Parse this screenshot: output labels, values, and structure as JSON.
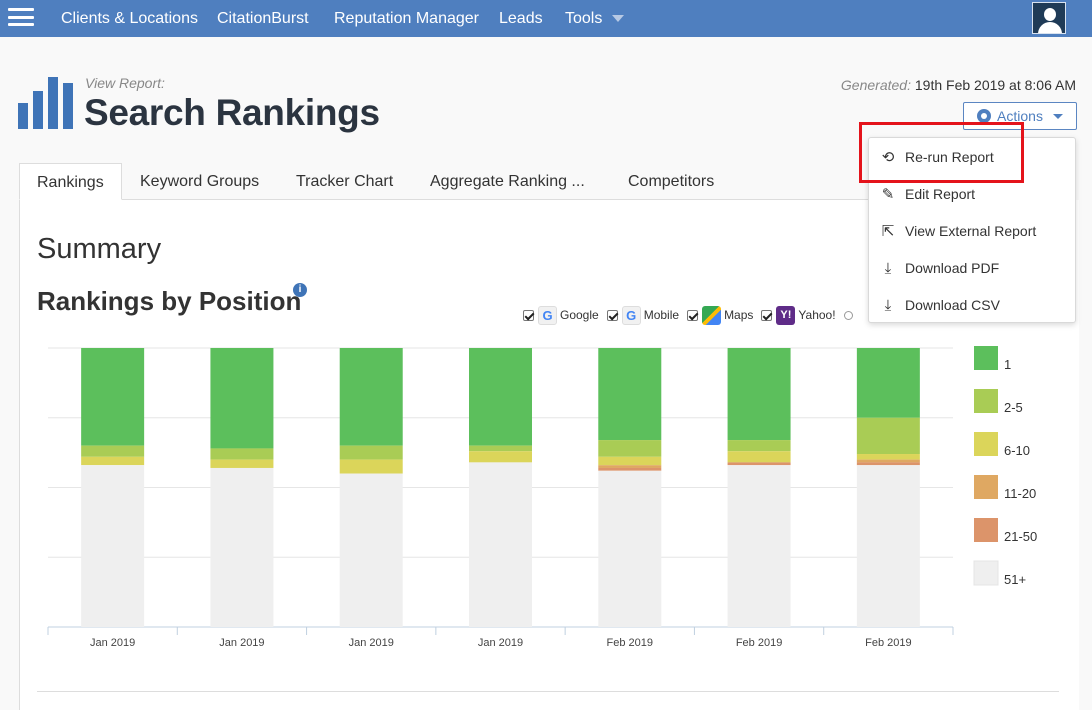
{
  "nav": {
    "items": [
      {
        "label": "Clients & Locations"
      },
      {
        "label": "CitationBurst"
      },
      {
        "label": "Reputation Manager"
      },
      {
        "label": "Leads"
      },
      {
        "label": "Tools"
      }
    ]
  },
  "header": {
    "view_report_label": "View Report:",
    "title": "Search Rankings",
    "generated_label": "Generated:",
    "generated_value": "19th Feb 2019 at 8:06 AM",
    "actions_label": "Actions"
  },
  "actions_menu": {
    "items": [
      {
        "label": "Re-run Report",
        "icon": "undo-icon"
      },
      {
        "label": "Edit Report",
        "icon": "pencil-icon"
      },
      {
        "label": "View External Report",
        "icon": "share-icon"
      },
      {
        "label": "Download PDF",
        "icon": "download-icon"
      },
      {
        "label": "Download CSV",
        "icon": "download-icon"
      }
    ]
  },
  "tabs": [
    {
      "label": "Rankings",
      "active": true
    },
    {
      "label": "Keyword Groups"
    },
    {
      "label": "Tracker Chart"
    },
    {
      "label": "Aggregate Ranking ..."
    },
    {
      "label": "Competitors"
    }
  ],
  "main": {
    "summary_heading": "Summary",
    "chart_heading": "Rankings by Position",
    "info_glyph": "i"
  },
  "filters": [
    {
      "label": "Google",
      "icon": "google-icon",
      "glyph": "G",
      "checked": true
    },
    {
      "label": "Mobile",
      "icon": "google-mobile-icon",
      "glyph": "G",
      "checked": true
    },
    {
      "label": "Maps",
      "icon": "google-maps-icon",
      "glyph": "",
      "checked": true
    },
    {
      "label": "Yahoo!",
      "icon": "yahoo-icon",
      "glyph": "Y!",
      "checked": true
    }
  ],
  "colors": {
    "nav_bg": "#4f7fbf",
    "accent": "#3f74b7",
    "highlight": "#e4131b"
  },
  "chart_data": {
    "type": "bar",
    "stacked": true,
    "categories": [
      "Jan 2019",
      "Jan 2019",
      "Jan 2019",
      "Jan 2019",
      "Feb 2019",
      "Feb 2019",
      "Feb 2019"
    ],
    "ylim": [
      0,
      100
    ],
    "grid": true,
    "legend_position": "right",
    "series": [
      {
        "name": "1",
        "color": "#5cbf5c",
        "values": [
          35,
          36,
          35,
          35,
          33,
          33,
          25
        ]
      },
      {
        "name": "2-5",
        "color": "#a9cc55",
        "values": [
          4,
          4,
          5,
          2,
          6,
          4,
          13
        ]
      },
      {
        "name": "6-10",
        "color": "#dbd55a",
        "values": [
          3,
          3,
          5,
          4,
          3,
          4,
          2
        ]
      },
      {
        "name": "11-20",
        "color": "#dfa862",
        "values": [
          0,
          0,
          0,
          0,
          1,
          0,
          1
        ]
      },
      {
        "name": "21-50",
        "color": "#dc946a",
        "values": [
          0,
          0,
          0,
          0,
          1,
          1,
          1
        ]
      },
      {
        "name": "51+",
        "color": "#efefef",
        "values": [
          58,
          57,
          55,
          59,
          56,
          58,
          58
        ]
      }
    ]
  }
}
